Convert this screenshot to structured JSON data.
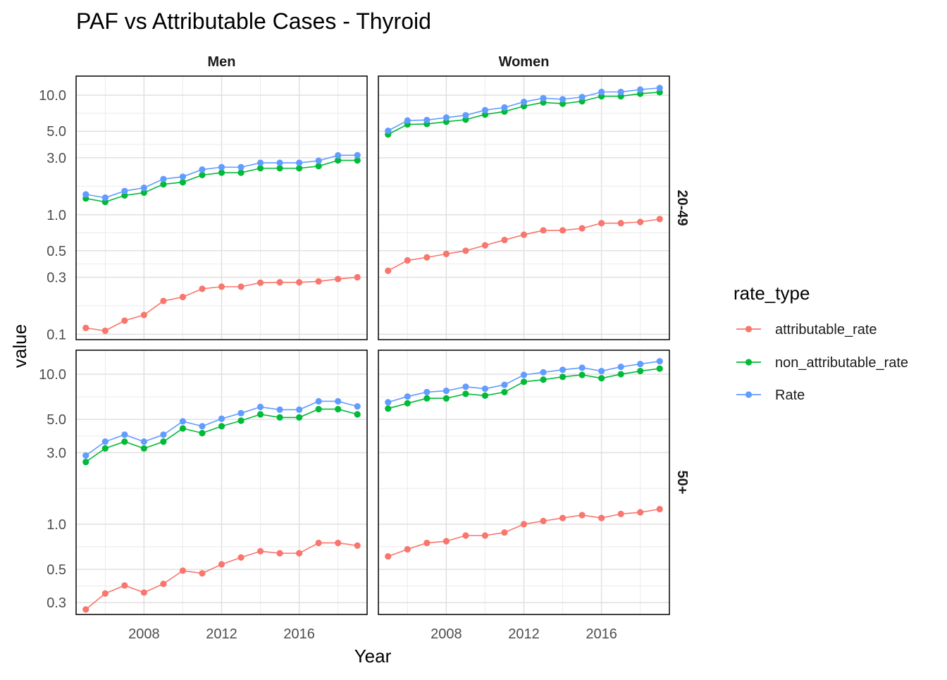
{
  "chart_data": {
    "type": "line",
    "title": "PAF vs Attributable Cases - Thyroid",
    "xlabel": "Year",
    "ylabel": "value",
    "y_scale": "log10",
    "x_ticks": [
      2008,
      2012,
      2016
    ],
    "legend": {
      "title": "rate_type",
      "placement": "right",
      "entries": [
        "attributable_rate",
        "non_attributable_rate",
        "Rate"
      ]
    },
    "colors": {
      "attributable_rate": "#F8766D",
      "non_attributable_rate": "#00BA38",
      "Rate": "#619CFF"
    },
    "x": [
      2005,
      2006,
      2007,
      2008,
      2009,
      2010,
      2011,
      2012,
      2013,
      2014,
      2015,
      2016,
      2017,
      2018,
      2019
    ],
    "panels": [
      {
        "col": "Men",
        "row": "20-49",
        "y_ticks": [
          0.1,
          0.3,
          0.5,
          1.0,
          3.0,
          5.0,
          10.0
        ],
        "y_tick_labels": [
          "0.1",
          "0.3",
          "0.5",
          "1.0",
          "3.0",
          "5.0",
          "10.0"
        ],
        "ylim": [
          0.09,
          14.5
        ],
        "series": [
          {
            "name": "attributable_rate",
            "values": [
              0.113,
              0.107,
              0.13,
              0.145,
              0.19,
              0.205,
              0.24,
              0.25,
              0.25,
              0.27,
              0.272,
              0.272,
              0.277,
              0.29,
              0.3
            ]
          },
          {
            "name": "non_attributable_rate",
            "values": [
              1.37,
              1.28,
              1.45,
              1.53,
              1.8,
              1.87,
              2.15,
              2.25,
              2.25,
              2.45,
              2.45,
              2.45,
              2.55,
              2.85,
              2.85
            ]
          },
          {
            "name": "Rate",
            "values": [
              1.48,
              1.39,
              1.58,
              1.68,
              1.99,
              2.08,
              2.39,
              2.5,
              2.5,
              2.72,
              2.72,
              2.72,
              2.83,
              3.14,
              3.15
            ]
          }
        ]
      },
      {
        "col": "Women",
        "row": "20-49",
        "y_ticks": [
          0.1,
          0.3,
          0.5,
          1.0,
          3.0,
          5.0,
          10.0
        ],
        "y_tick_labels": [
          "0.1",
          "0.3",
          "0.5",
          "1.0",
          "3.0",
          "5.0",
          "10.0"
        ],
        "ylim": [
          0.09,
          14.5
        ],
        "series": [
          {
            "name": "attributable_rate",
            "values": [
              0.34,
              0.415,
              0.44,
              0.47,
              0.5,
              0.555,
              0.615,
              0.68,
              0.74,
              0.74,
              0.77,
              0.85,
              0.85,
              0.87,
              0.92
            ]
          },
          {
            "name": "non_attributable_rate",
            "values": [
              4.7,
              5.7,
              5.75,
              6.0,
              6.25,
              6.9,
              7.3,
              8.1,
              8.7,
              8.5,
              8.9,
              9.8,
              9.8,
              10.3,
              10.6
            ]
          },
          {
            "name": "Rate",
            "values": [
              5.04,
              6.15,
              6.2,
              6.5,
              6.8,
              7.5,
              7.9,
              8.8,
              9.45,
              9.25,
              9.65,
              10.65,
              10.65,
              11.15,
              11.5
            ]
          }
        ]
      },
      {
        "col": "Men",
        "row": "50+",
        "y_ticks": [
          0.3,
          0.5,
          1.0,
          3.0,
          5.0,
          10.0
        ],
        "y_tick_labels": [
          "0.3",
          "0.5",
          "1.0",
          "3.0",
          "5.0",
          "10.0"
        ],
        "ylim": [
          0.25,
          14.5
        ],
        "series": [
          {
            "name": "attributable_rate",
            "values": [
              0.27,
              0.345,
              0.39,
              0.35,
              0.4,
              0.49,
              0.47,
              0.54,
              0.6,
              0.66,
              0.64,
              0.64,
              0.75,
              0.75,
              0.72
            ]
          },
          {
            "name": "non_attributable_rate",
            "values": [
              2.6,
              3.2,
              3.55,
              3.2,
              3.55,
              4.35,
              4.05,
              4.5,
              4.9,
              5.4,
              5.15,
              5.15,
              5.85,
              5.85,
              5.4
            ]
          },
          {
            "name": "Rate",
            "values": [
              2.87,
              3.55,
              3.95,
              3.55,
              3.95,
              4.85,
              4.5,
              5.05,
              5.5,
              6.05,
              5.8,
              5.8,
              6.6,
              6.6,
              6.1
            ]
          }
        ]
      },
      {
        "col": "Women",
        "row": "50+",
        "y_ticks": [
          0.3,
          0.5,
          1.0,
          3.0,
          5.0,
          10.0
        ],
        "y_tick_labels": [
          "0.3",
          "0.5",
          "1.0",
          "3.0",
          "5.0",
          "10.0"
        ],
        "ylim": [
          0.25,
          14.5
        ],
        "series": [
          {
            "name": "attributable_rate",
            "values": [
              0.61,
              0.68,
              0.75,
              0.77,
              0.84,
              0.84,
              0.88,
              1.0,
              1.05,
              1.1,
              1.15,
              1.1,
              1.17,
              1.2,
              1.26
            ]
          },
          {
            "name": "non_attributable_rate",
            "values": [
              5.9,
              6.4,
              6.9,
              6.9,
              7.4,
              7.2,
              7.6,
              8.9,
              9.2,
              9.6,
              9.9,
              9.4,
              10.0,
              10.5,
              10.9
            ]
          },
          {
            "name": "Rate",
            "values": [
              6.5,
              7.1,
              7.6,
              7.75,
              8.25,
              8.0,
              8.5,
              9.9,
              10.3,
              10.7,
              11.05,
              10.5,
              11.2,
              11.7,
              12.2
            ]
          }
        ]
      }
    ]
  }
}
